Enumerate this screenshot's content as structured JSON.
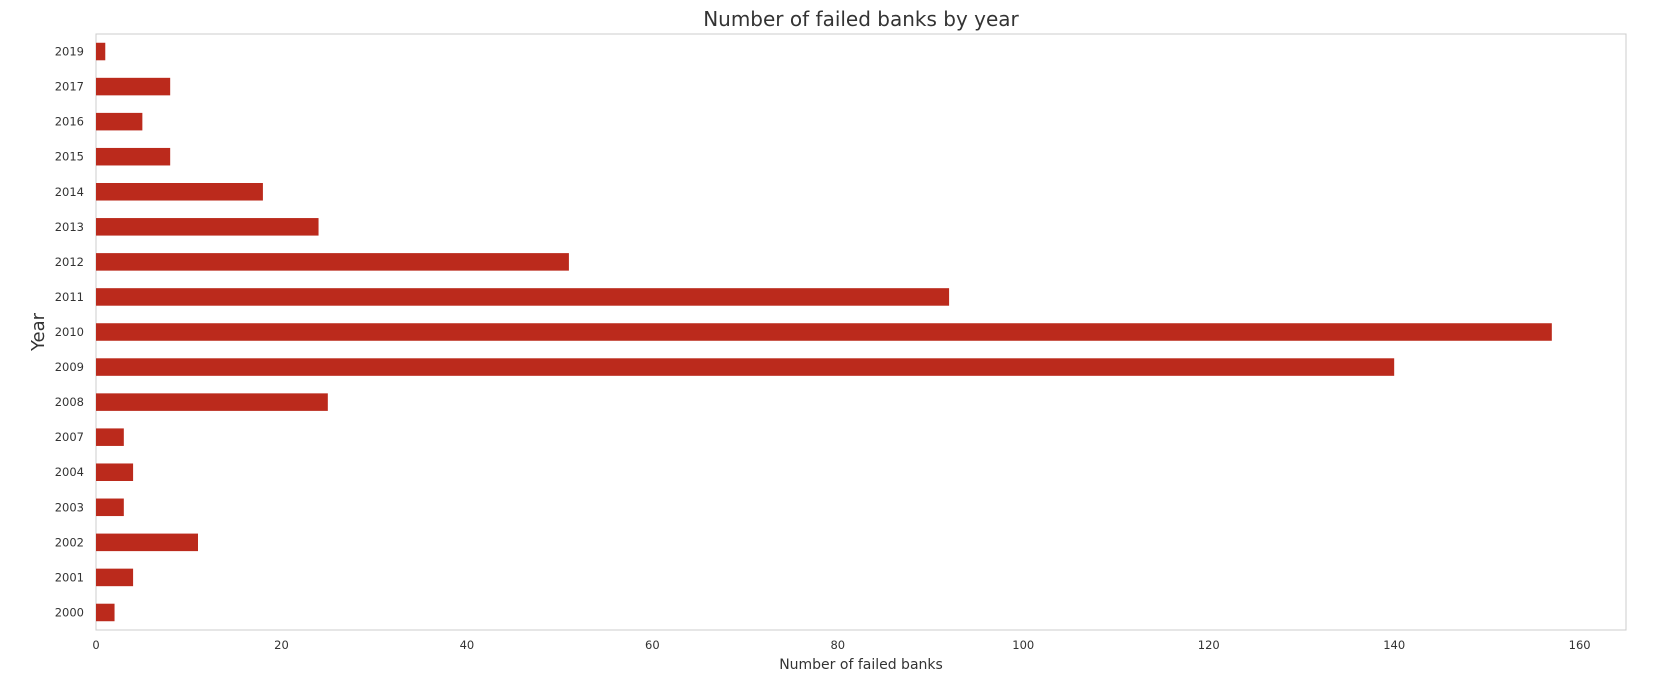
{
  "chart_data": {
    "type": "bar",
    "orientation": "horizontal",
    "title": "Number of failed banks by year",
    "xlabel": "Number of failed banks",
    "ylabel": "Year",
    "categories": [
      "2019",
      "2017",
      "2016",
      "2015",
      "2014",
      "2013",
      "2012",
      "2011",
      "2010",
      "2009",
      "2008",
      "2007",
      "2004",
      "2003",
      "2002",
      "2001",
      "2000"
    ],
    "values": [
      1,
      8,
      5,
      8,
      18,
      24,
      51,
      92,
      157,
      140,
      25,
      3,
      4,
      3,
      11,
      4,
      2
    ],
    "xlim": [
      0,
      165
    ],
    "xticks": [
      0,
      20,
      40,
      60,
      80,
      100,
      120,
      140,
      160
    ],
    "grid": false,
    "bar_color": "#bb2a1c",
    "frame_color": "#cccccc"
  }
}
